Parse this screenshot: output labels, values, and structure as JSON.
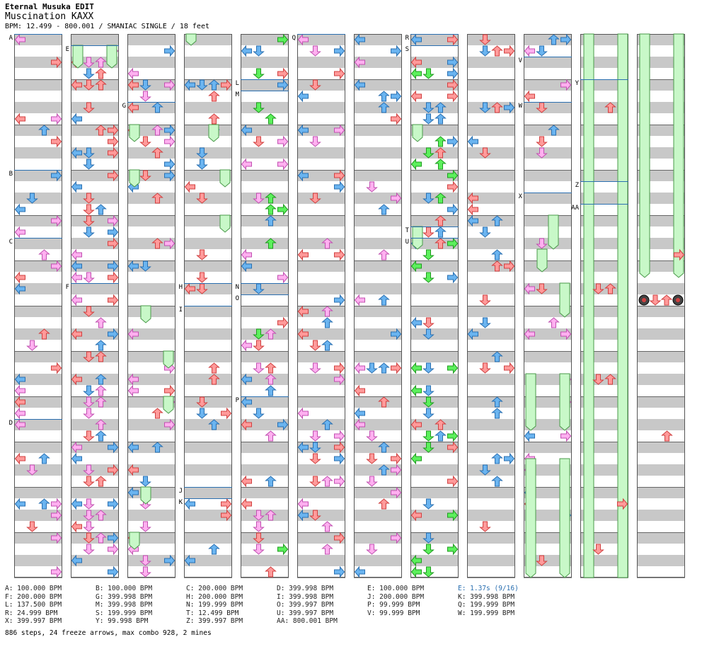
{
  "header": {
    "title": "Eternal Musuka EDIT",
    "subtitle": "Muscination KAXX",
    "info": "BPM: 12.499 - 800.001 / SMANIAC SINGLE / 18 feet"
  },
  "colors": {
    "stripe": "#c8c8c8",
    "stripe_alt": "#ffffff",
    "column_border": "#555555",
    "bpm_line": "#2a6fb0",
    "red_arrow": "#ff9a9a",
    "red_stroke": "#d04040",
    "blue_arrow": "#6ab4f0",
    "blue_stroke": "#2a6fb0",
    "pink_arrow": "#ffb0f0",
    "pink_stroke": "#c050b0",
    "green_arrow": "#5cf05c",
    "green_stroke": "#1f9a1f",
    "yellow_arrow": "#ffff40",
    "yellow_stroke": "#b0a000",
    "freeze_fill": "#c8f8c8",
    "freeze_stroke": "#4a9a4a"
  },
  "chart_data": {
    "type": "step-chart",
    "columns": 12,
    "lanes_per_column": 4,
    "bpm_changes": [
      {
        "label": "A",
        "bpm": "100.000 BPM"
      },
      {
        "label": "B",
        "bpm": "100.000 BPM"
      },
      {
        "label": "C",
        "bpm": "200.000 BPM"
      },
      {
        "label": "D",
        "bpm": "399.998 BPM"
      },
      {
        "label": "E",
        "bpm": "100.000 BPM"
      },
      {
        "label": "F",
        "bpm": "200.000 BPM"
      },
      {
        "label": "G",
        "bpm": "399.998 BPM"
      },
      {
        "label": "H",
        "bpm": "200.000 BPM"
      },
      {
        "label": "I",
        "bpm": "399.998 BPM"
      },
      {
        "label": "J",
        "bpm": "200.000 BPM"
      },
      {
        "label": "K",
        "bpm": "399.998 BPM"
      },
      {
        "label": "L",
        "bpm": "137.500 BPM"
      },
      {
        "label": "M",
        "bpm": "399.998 BPM"
      },
      {
        "label": "N",
        "bpm": "199.999 BPM"
      },
      {
        "label": "O",
        "bpm": "399.997 BPM"
      },
      {
        "label": "P",
        "bpm": "99.999 BPM"
      },
      {
        "label": "Q",
        "bpm": "199.999 BPM"
      },
      {
        "label": "R",
        "bpm": "24.999 BPM"
      },
      {
        "label": "S",
        "bpm": "199.999 BPM"
      },
      {
        "label": "T",
        "bpm": "12.499 BPM"
      },
      {
        "label": "U",
        "bpm": "399.997 BPM"
      },
      {
        "label": "V",
        "bpm": "99.999 BPM"
      },
      {
        "label": "W",
        "bpm": "199.999 BPM"
      },
      {
        "label": "X",
        "bpm": "399.997 BPM"
      },
      {
        "label": "Y",
        "bpm": "99.998 BPM"
      },
      {
        "label": "Z",
        "bpm": "399.997 BPM"
      },
      {
        "label": "AA",
        "bpm": "800.001 BPM"
      }
    ],
    "stops": [
      {
        "label": "E",
        "text": "1.37s (9/16)"
      }
    ],
    "steps": 886,
    "freeze_arrows": 24,
    "max_combo": 928,
    "mines": 2
  },
  "legend": {
    "rows": [
      [
        "A: 100.000 BPM",
        "B: 100.000 BPM",
        "C: 200.000 BPM",
        "D: 399.998 BPM",
        "E: 100.000 BPM",
        "E: 1.37s (9/16)"
      ],
      [
        "F: 200.000 BPM",
        "G: 399.998 BPM",
        "H: 200.000 BPM",
        "I: 399.998 BPM",
        "J: 200.000 BPM",
        "K: 399.998 BPM"
      ],
      [
        "L: 137.500 BPM",
        "M: 399.998 BPM",
        "N: 199.999 BPM",
        "O: 399.997 BPM",
        "P: 99.999 BPM",
        "Q: 199.999 BPM"
      ],
      [
        "R: 24.999 BPM",
        "S: 199.999 BPM",
        "T: 12.499 BPM",
        "U: 399.997 BPM",
        "V: 99.999 BPM",
        "W: 199.999 BPM"
      ],
      [
        "X: 399.997 BPM",
        "Y: 99.998 BPM",
        "Z: 399.997 BPM",
        "AA: 800.001 BPM"
      ]
    ]
  },
  "summary": "886 steps, 24 freeze arrows, max combo 928, 2 mines"
}
